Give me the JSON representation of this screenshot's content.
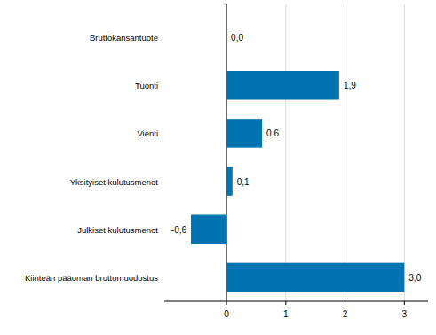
{
  "chart_data": {
    "type": "bar",
    "orientation": "horizontal",
    "categories": [
      "Bruttokansantuote",
      "Tuonti",
      "Vienti",
      "Yksityiset kulutusmenot",
      "Julkiset kulutusmenot",
      "Kiinteän pääoman bruttomuodostus"
    ],
    "values": [
      0.0,
      1.9,
      0.6,
      0.1,
      -0.6,
      3.0
    ],
    "value_labels": [
      "0,0",
      "1,9",
      "0,6",
      "0,1",
      "-0,6",
      "3,0"
    ],
    "color": "#0073b0",
    "xlim": [
      -1.05,
      3.4
    ],
    "xticks": [
      0,
      1,
      2,
      3
    ],
    "grid": true,
    "data_labels": true
  }
}
